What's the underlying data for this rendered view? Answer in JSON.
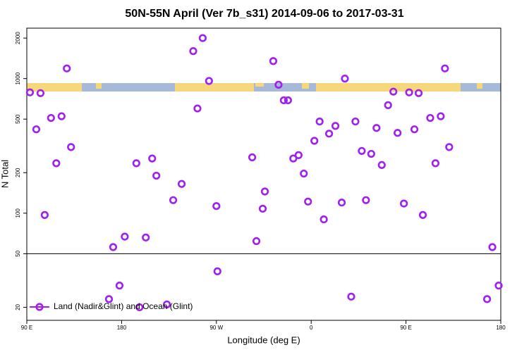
{
  "chart_data": {
    "type": "scatter",
    "title": "50N-55N April (Ver 7b_s31)   2014-09-06 to 2017-03-31",
    "x_label": "Longitude (deg E)",
    "y_label": "N Total",
    "log_y": true,
    "legend": "lower left",
    "reference_line": 50,
    "xlim": [
      90,
      540
    ],
    "ylim": [
      16,
      2370
    ],
    "xticks": [
      {
        "value": 90,
        "label": "90 E"
      },
      {
        "value": 180,
        "label": "180"
      },
      {
        "value": 270,
        "label": "90 W"
      },
      {
        "value": 360,
        "label": "0"
      },
      {
        "value": 450,
        "label": "90 E"
      },
      {
        "value": 540,
        "label": "180"
      }
    ],
    "yticks": [
      20,
      50,
      100,
      200,
      500,
      1000,
      2000
    ],
    "series": [
      {
        "name": "Land (Nadir&Glint) and Ocean (Glint)",
        "color": "#a020f0",
        "x": [
          93,
          99,
          103,
          107,
          113,
          118,
          123,
          128,
          132,
          168,
          172,
          178,
          183,
          194,
          197,
          203,
          209,
          213,
          223,
          229,
          237,
          248,
          252,
          257,
          263,
          270,
          271,
          304,
          308,
          314,
          316,
          324,
          329,
          334,
          338,
          343,
          348,
          353,
          357,
          363,
          368,
          372,
          377,
          383,
          389,
          392,
          398,
          402,
          408,
          412,
          417,
          422,
          427,
          433,
          438,
          442,
          448,
          453,
          458,
          462,
          466,
          473,
          478,
          483,
          487,
          491,
          527,
          532,
          538
        ],
        "values": [
          790,
          420,
          780,
          97,
          510,
          235,
          525,
          1190,
          310,
          23,
          56,
          29,
          67,
          235,
          20,
          66,
          255,
          190,
          21,
          125,
          165,
          1600,
          600,
          2000,
          960,
          113,
          37,
          260,
          62,
          108,
          145,
          1350,
          900,
          690,
          690,
          255,
          270,
          197,
          122,
          345,
          480,
          90,
          390,
          445,
          120,
          1000,
          24,
          480,
          290,
          125,
          276,
          430,
          228,
          635,
          800,
          395,
          118,
          790,
          420,
          780,
          97,
          510,
          235,
          525,
          1190,
          310,
          23,
          56,
          29
        ]
      }
    ]
  }
}
